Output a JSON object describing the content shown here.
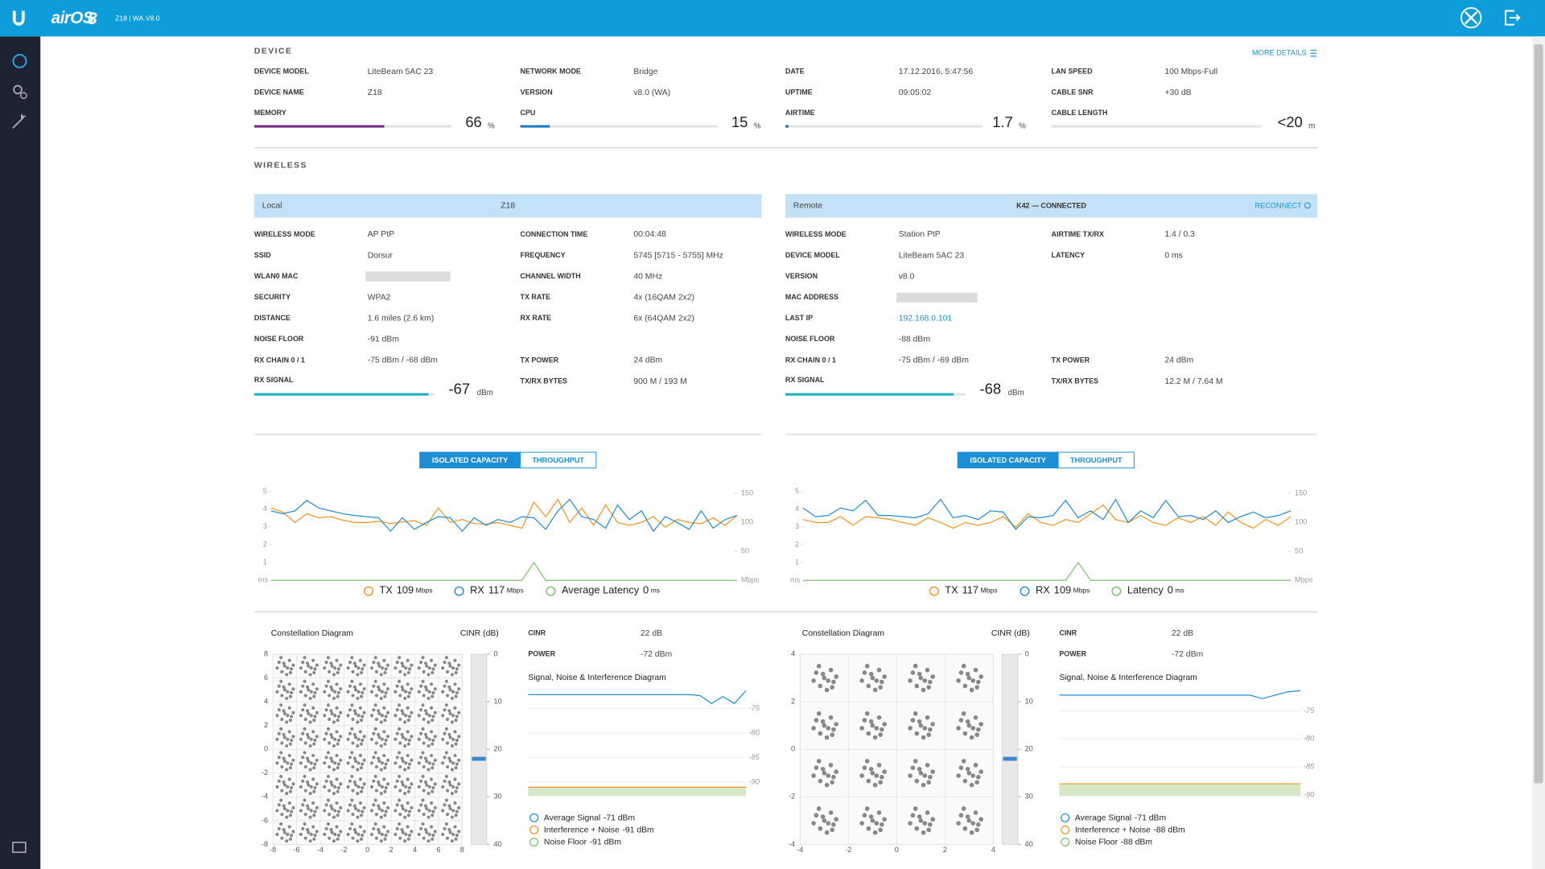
{
  "header": {
    "brand": "airOS",
    "brand_version": "8",
    "device_info": "Z18 | WA.V8.0"
  },
  "device": {
    "title": "DEVICE",
    "more_details": "MORE DETAILS",
    "columns": [
      [
        {
          "label": "DEVICE MODEL",
          "value": "LiteBeam 5AC 23"
        },
        {
          "label": "DEVICE NAME",
          "value": "Z18"
        }
      ],
      [
        {
          "label": "NETWORK MODE",
          "value": "Bridge"
        },
        {
          "label": "VERSION",
          "value": "v8.0 (WA)"
        }
      ],
      [
        {
          "label": "DATE",
          "value": "17.12.2016, 5:47:56"
        },
        {
          "label": "UPTIME",
          "value": "09:05:02"
        }
      ],
      [
        {
          "label": "LAN SPEED",
          "value": "100 Mbps-Full"
        },
        {
          "label": "CABLE SNR",
          "value": "+30 dB"
        }
      ]
    ],
    "meters": [
      {
        "label": "MEMORY",
        "value": 66,
        "unit": "%",
        "range": [
          0,
          100
        ],
        "color": "#6d2b7f"
      },
      {
        "label": "CPU",
        "value": 15,
        "unit": "%",
        "range": [
          0,
          100
        ],
        "color": "#1b7bc0"
      },
      {
        "label": "AIRTIME",
        "value": 1.7,
        "unit": "%",
        "range": [
          0,
          100
        ],
        "color": "#1b7bc0"
      },
      {
        "label": "CABLE LENGTH",
        "value_text": "<20",
        "unit": "m"
      }
    ]
  },
  "wireless": {
    "title": "WIRELESS",
    "panels": [
      {
        "heading": "Local",
        "device": "Z18",
        "columns": [
          [
            {
              "label": "WIRELESS MODE",
              "value": "AP PtP"
            },
            {
              "label": "SSID",
              "value": "Dorsur"
            },
            {
              "label": "WLAN0 MAC",
              "value": null
            },
            {
              "label": "SECURITY",
              "value": "WPA2"
            },
            {
              "label": "DISTANCE",
              "value": "1.6 miles (2.6 km)"
            },
            {
              "label": "NOISE FLOOR",
              "value": "-91 dBm"
            },
            {
              "label": "RX CHAIN 0 / 1",
              "value": "-75 dBm / -68 dBm"
            }
          ],
          [
            {
              "label": "CONNECTION TIME",
              "value": "00:04:48"
            },
            {
              "label": "FREQUENCY",
              "value": "5745 [5715 - 5755] MHz"
            },
            {
              "label": "CHANNEL WIDTH",
              "value": "40 MHz"
            },
            {
              "label": "TX RATE",
              "value": "4x (16QAM 2x2)"
            },
            {
              "label": "RX RATE",
              "value": "6x (64QAM 2x2)"
            },
            null,
            {
              "label": "TX POWER",
              "value": "24 dBm"
            },
            {
              "label": "TX/RX BYTES",
              "value": "900 M / 193 M"
            }
          ]
        ],
        "signal": {
          "label": "RX SIGNAL",
          "value": -67,
          "unit": "dBm",
          "range": [
            -96,
            -66
          ],
          "color": "#1fb3c6"
        }
      },
      {
        "heading": "Remote",
        "device": "K42 — CONNECTED",
        "action": "RECONNECT",
        "columns": [
          [
            {
              "label": "WIRELESS MODE",
              "value": "Station PtP"
            },
            {
              "label": "DEVICE MODEL",
              "value": "LiteBeam 5AC 23"
            },
            {
              "label": "VERSION",
              "value": "v8.0"
            },
            {
              "label": "MAC ADDRESS",
              "value": null
            },
            {
              "label": "LAST IP",
              "value": "192.168.0.101",
              "link": true
            },
            {
              "label": "NOISE FLOOR",
              "value": "-88 dBm"
            },
            {
              "label": "RX CHAIN 0 / 1",
              "value": "-75 dBm / -69 dBm"
            }
          ],
          [
            {
              "label": "AIRTIME TX/RX",
              "value": "1.4 / 0.3"
            },
            {
              "label": "LATENCY",
              "value": "0 ms"
            },
            null,
            null,
            null,
            null,
            {
              "label": "TX POWER",
              "value": "24 dBm"
            },
            {
              "label": "TX/RX BYTES",
              "value": "12.2 M / 7.64 M"
            }
          ]
        ],
        "signal": {
          "label": "RX SIGNAL",
          "value": -68,
          "unit": "dBm",
          "range": [
            -96,
            -66
          ],
          "color": "#1fb3c6"
        }
      }
    ]
  },
  "charts": [
    {
      "type": "line",
      "tabs": [
        "ISOLATED CAPACITY",
        "THROUGHPUT"
      ],
      "active_tab": 0,
      "ylim": [
        0,
        5.2
      ],
      "yticks": [
        1,
        2,
        3,
        4,
        5
      ],
      "y_unit": "ms",
      "y2lim": [
        0,
        160
      ],
      "y2ticks": [
        50,
        100,
        150
      ],
      "y2_unit": "Mbps",
      "series": [
        {
          "name": "TX",
          "legend_value": 109,
          "unit": "Mbps",
          "color": "#f7941d",
          "axis": "y2",
          "values": [
            125,
            118,
            100,
            115,
            108,
            110,
            104,
            100,
            100,
            102,
            98,
            101,
            103,
            95,
            125,
            100,
            105,
            98,
            97,
            100,
            95,
            90,
            135,
            110,
            140,
            100,
            125,
            95,
            130,
            100,
            95,
            100,
            110,
            92,
            105,
            100,
            98,
            108,
            95,
            112
          ]
        },
        {
          "name": "RX",
          "legend_value": 117,
          "unit": "Mbps",
          "color": "#1f8dd6",
          "axis": "y2",
          "values": [
            120,
            115,
            120,
            138,
            125,
            120,
            115,
            112,
            110,
            108,
            85,
            108,
            88,
            100,
            110,
            108,
            85,
            108,
            95,
            105,
            100,
            110,
            108,
            88,
            120,
            140,
            110,
            105,
            90,
            130,
            105,
            120,
            85,
            110,
            100,
            88,
            120,
            90,
            105,
            112
          ]
        },
        {
          "name": "Average Latency",
          "legend_value": 0,
          "unit": "ms",
          "color": "#7bc26b",
          "axis": "y",
          "values": [
            0,
            0,
            0,
            0,
            0,
            0,
            0,
            0,
            0,
            0,
            0,
            0,
            0,
            0,
            0,
            0,
            0,
            0,
            0,
            0,
            0,
            0,
            1,
            0,
            0,
            0,
            0,
            0,
            0,
            0,
            0,
            0,
            0,
            0,
            0,
            0,
            0,
            0,
            0,
            0
          ]
        }
      ]
    },
    {
      "type": "line",
      "tabs": [
        "ISOLATED CAPACITY",
        "THROUGHPUT"
      ],
      "active_tab": 0,
      "ylim": [
        0,
        5.2
      ],
      "yticks": [
        1,
        2,
        3,
        4,
        5
      ],
      "y_unit": "ms",
      "y2lim": [
        0,
        160
      ],
      "y2ticks": [
        50,
        100,
        150
      ],
      "y2_unit": "Mbps",
      "series": [
        {
          "name": "TX",
          "legend_value": 117,
          "unit": "Mbps",
          "color": "#f7941d",
          "axis": "y2",
          "values": [
            105,
            100,
            100,
            110,
            95,
            110,
            108,
            105,
            100,
            95,
            108,
            100,
            90,
            100,
            95,
            100,
            110,
            92,
            115,
            100,
            95,
            105,
            100,
            115,
            130,
            105,
            100,
            112,
            100,
            95,
            108,
            100,
            110,
            95,
            118,
            100,
            90,
            105,
            95,
            110
          ]
        },
        {
          "name": "RX",
          "legend_value": 109,
          "unit": "Mbps",
          "color": "#1f8dd6",
          "axis": "y2",
          "values": [
            125,
            110,
            112,
            125,
            120,
            138,
            112,
            112,
            110,
            108,
            115,
            140,
            108,
            112,
            105,
            120,
            118,
            88,
            110,
            108,
            112,
            138,
            108,
            120,
            105,
            140,
            100,
            120,
            108,
            138,
            110,
            112,
            105,
            120,
            100,
            110,
            118,
            108,
            112,
            120
          ]
        },
        {
          "name": "Latency",
          "legend_value": 0,
          "unit": "ms",
          "color": "#7bc26b",
          "axis": "y",
          "values": [
            0,
            0,
            0,
            0,
            0,
            0,
            0,
            0,
            0,
            0,
            0,
            0,
            0,
            0,
            0,
            0,
            0,
            0,
            0,
            0,
            0,
            0,
            1,
            0,
            0,
            0,
            0,
            0,
            0,
            0,
            0,
            0,
            0,
            0,
            0,
            0,
            0,
            0,
            0,
            0
          ]
        }
      ]
    }
  ],
  "constellations": [
    {
      "title": "Constellation Diagram",
      "cinr_title": "CINR (dB)",
      "xlim": [
        -8,
        8
      ],
      "ylim": [
        -8,
        8
      ],
      "xticks": [
        -8,
        -6,
        -4,
        -2,
        0,
        2,
        4,
        6,
        8
      ],
      "yticks": [
        -8,
        -6,
        -4,
        -2,
        0,
        2,
        4,
        6,
        8
      ],
      "cluster_levels": [
        -7,
        -5,
        -3,
        -1,
        1,
        3,
        5,
        7
      ],
      "cinr": {
        "value": 22,
        "lim": [
          0,
          40
        ],
        "ticks": [
          0,
          10,
          20,
          30,
          40
        ]
      },
      "stats": [
        {
          "label": "CINR",
          "value": "22 dB"
        },
        {
          "label": "POWER",
          "value": "-72 dBm"
        }
      ],
      "sni": {
        "title": "Signal, Noise & Interference Diagram",
        "ylim": [
          -92.8,
          -70.6
        ],
        "yticks": [
          -75,
          -80,
          -85,
          -90
        ],
        "signal": [
          -72.2,
          -72.2,
          -72.2,
          -72.2,
          -72.2,
          -72.2,
          -72.2,
          -72.2,
          -72.2,
          -72.2,
          -72.2,
          -72.2,
          -72.2,
          -72.2,
          -72.2,
          -72.4,
          -74,
          -72.6,
          -74,
          -71.4
        ],
        "signal_color": "#1f8dd6",
        "interference_level": -91,
        "interference_color": "#f7941d",
        "noise_floor_level": -91,
        "noise_floor_color": "#7bc26b",
        "legend": [
          {
            "name": "Average Signal",
            "value_label": "-71 dBm",
            "color": "#1f8dd6"
          },
          {
            "name": "Interference + Noise",
            "value_label": "-91 dBm",
            "color": "#f7941d"
          },
          {
            "name": "Noise Floor",
            "value_label": "-91 dBm",
            "color": "#7bc26b"
          }
        ]
      }
    },
    {
      "title": "Constellation Diagram",
      "cinr_title": "CINR (dB)",
      "xlim": [
        -4,
        4
      ],
      "ylim": [
        -4,
        4
      ],
      "xticks": [
        -4,
        -2,
        0,
        2,
        4
      ],
      "yticks": [
        -4,
        -2,
        0,
        2,
        4
      ],
      "cluster_levels": [
        -3,
        -1,
        1,
        3
      ],
      "cinr": {
        "value": 22,
        "lim": [
          0,
          40
        ],
        "ticks": [
          0,
          10,
          20,
          30,
          40
        ]
      },
      "stats": [
        {
          "label": "CINR",
          "value": "22 dB"
        },
        {
          "label": "POWER",
          "value": "-72 dBm"
        }
      ],
      "sni": {
        "title": "Signal, Noise & Interference Diagram",
        "ylim": [
          -90.2,
          -70.7
        ],
        "yticks": [
          -75,
          -80,
          -85,
          -90
        ],
        "signal": [
          -72.2,
          -72.2,
          -72.2,
          -72.2,
          -72.2,
          -72.2,
          -72.2,
          -72.2,
          -72.2,
          -72.2,
          -72.2,
          -72.2,
          -72.2,
          -72.2,
          -72.2,
          -72.2,
          -72.8,
          -72.2,
          -71.6,
          -71.4
        ],
        "signal_color": "#1f8dd6",
        "interference_level": -88,
        "interference_color": "#f7941d",
        "noise_floor_level": -88,
        "noise_floor_color": "#7bc26b",
        "legend": [
          {
            "name": "Average Signal",
            "value_label": "-71 dBm",
            "color": "#1f8dd6"
          },
          {
            "name": "Interference + Noise",
            "value_label": "-88 dBm",
            "color": "#f7941d"
          },
          {
            "name": "Noise Floor",
            "value_label": "-88 dBm",
            "color": "#7bc26b"
          }
        ]
      }
    }
  ]
}
